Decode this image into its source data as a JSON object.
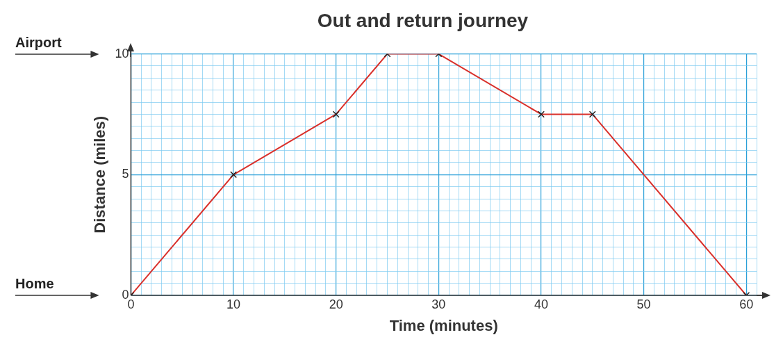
{
  "chart_data": {
    "type": "line",
    "title": "Out and return journey",
    "xlabel": "Time (minutes)",
    "ylabel": "Distance (miles)",
    "x": [
      0,
      10,
      20,
      25,
      30,
      40,
      45,
      60
    ],
    "series": [
      {
        "color": "#d9302b",
        "values": [
          0,
          5,
          7.5,
          10,
          10,
          7.5,
          7.5,
          0
        ]
      }
    ],
    "xlim": [
      0,
      61
    ],
    "ylim": [
      0,
      10
    ],
    "xticks": [
      0,
      {
        "value": 1,
        "label": null
      },
      {
        "value": 2,
        "label": null
      },
      {
        "value": 3,
        "label": null
      },
      {
        "value": 4,
        "label": null
      },
      {
        "value": 5,
        "label": null
      },
      {
        "value": 6,
        "label": null
      },
      {
        "value": 7,
        "label": null
      },
      {
        "value": 8,
        "label": null
      },
      {
        "value": 9,
        "label": null
      },
      10,
      {
        "value": 11,
        "label": null
      },
      {
        "value": 12,
        "label": null
      },
      {
        "value": 13,
        "label": null
      },
      {
        "value": 14,
        "label": null
      },
      {
        "value": 15,
        "label": null
      },
      {
        "value": 16,
        "label": null
      },
      {
        "value": 17,
        "label": null
      },
      {
        "value": 18,
        "label": null
      },
      {
        "value": 19,
        "label": null
      },
      20,
      {
        "value": 21,
        "label": null
      },
      {
        "value": 22,
        "label": null
      },
      {
        "value": 23,
        "label": null
      },
      {
        "value": 24,
        "label": null
      },
      {
        "value": 25,
        "label": null
      },
      {
        "value": 26,
        "label": null
      },
      {
        "value": 27,
        "label": null
      },
      {
        "value": 28,
        "label": null
      },
      {
        "value": 29,
        "label": null
      },
      30,
      {
        "value": 31,
        "label": null
      },
      {
        "value": 32,
        "label": null
      },
      {
        "value": 33,
        "label": null
      },
      {
        "value": 34,
        "label": null
      },
      {
        "value": 35,
        "label": null
      },
      {
        "value": 36,
        "label": null
      },
      {
        "value": 37,
        "label": null
      },
      {
        "value": 38,
        "label": null
      },
      {
        "value": 39,
        "label": null
      },
      40,
      {
        "value": 41,
        "label": null
      },
      {
        "value": 42,
        "label": null
      },
      {
        "value": 43,
        "label": null
      },
      {
        "value": 44,
        "label": null
      },
      {
        "value": 45,
        "label": null
      },
      {
        "value": 46,
        "label": null
      },
      {
        "value": 47,
        "label": null
      },
      {
        "value": 48,
        "label": null
      },
      {
        "value": 49,
        "label": null
      },
      50,
      {
        "value": 51,
        "label": null
      },
      {
        "value": 52,
        "label": null
      },
      {
        "value": 53,
        "label": null
      },
      {
        "value": 54,
        "label": null
      },
      {
        "value": 55,
        "label": null
      },
      {
        "value": 56,
        "label": null
      },
      {
        "value": 57,
        "label": null
      },
      {
        "value": 58,
        "label": null
      },
      {
        "value": 59,
        "label": null
      },
      60,
      {
        "value": 61,
        "label": null
      }
    ],
    "yticks": [
      0,
      {
        "value": 0.5,
        "label": null
      },
      {
        "value": 1,
        "label": null
      },
      {
        "value": 1.5,
        "label": null
      },
      {
        "value": 2,
        "label": null
      },
      {
        "value": 2.5,
        "label": null
      },
      {
        "value": 3,
        "label": null
      },
      {
        "value": 3.5,
        "label": null
      },
      {
        "value": 4,
        "label": null
      },
      {
        "value": 4.5,
        "label": null
      },
      5,
      {
        "value": 5.5,
        "label": null
      },
      {
        "value": 6,
        "label": null
      },
      {
        "value": 6.5,
        "label": null
      },
      {
        "value": 7,
        "label": null
      },
      {
        "value": 7.5,
        "label": null
      },
      {
        "value": 8,
        "label": null
      },
      {
        "value": 8.5,
        "label": null
      },
      {
        "value": 9,
        "label": null
      },
      {
        "value": 9.5,
        "label": null
      },
      10
    ],
    "grid": true,
    "legend": false,
    "marker": "cross",
    "line_style": "solid",
    "annotations": [
      "Airport",
      "Home"
    ]
  }
}
